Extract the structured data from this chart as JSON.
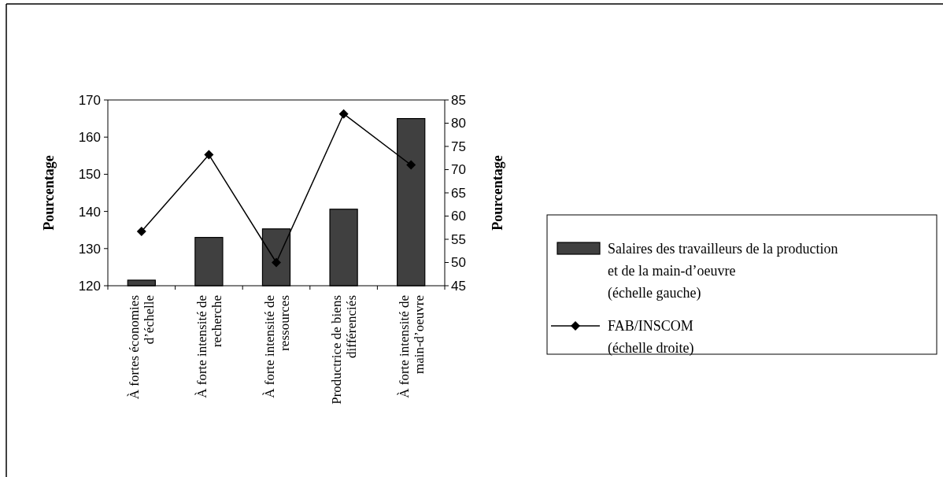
{
  "chart_data": {
    "type": "bar",
    "ylabel": "Pourcentage",
    "y2label": "Pourcentage",
    "categories": [
      "À fortes économies d’échelle",
      "À forte intensité de recherche",
      "À forte intensité de ressources",
      "Productrice de biens différenciés",
      "À forte intensité de main-d’oeuvre"
    ],
    "series": [
      {
        "name": "Salaires des travailleurs de la production et de la main-d’oeuvre (échelle gauche)",
        "color": "#404040",
        "values": [
          121.5,
          133,
          135.3,
          140.6,
          165
        ]
      },
      {
        "name": "FAB/INSCOM (échelle droite)",
        "type": "line",
        "axis": "y2",
        "color": "#000000",
        "marker": "diamond",
        "values": [
          56.7,
          73.2,
          50,
          82,
          71
        ]
      }
    ],
    "ylim": [
      120,
      170
    ],
    "yticks": [
      120,
      130,
      140,
      150,
      160,
      170
    ],
    "y2lim": [
      45,
      85
    ],
    "y2ticks": [
      45,
      50,
      55,
      60,
      65,
      70,
      75,
      80,
      85
    ],
    "legend": "right",
    "grid": false
  }
}
